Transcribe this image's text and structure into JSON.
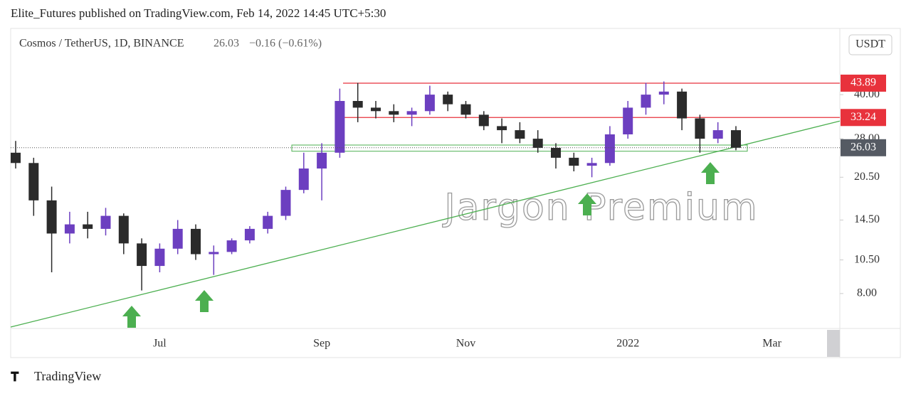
{
  "chart_data": {
    "type": "candlestick",
    "publisher": "Elite_Futures published on TradingView.com, Feb 14, 2022 14:45 UTC+5:30",
    "title": "Cosmos / TetherUS, 1D, BINANCE",
    "change_label": "−0.16 (−0.61%)",
    "currency": "USDT",
    "watermark": "Jargon Premium",
    "brand": "TradingView",
    "categories": [
      null,
      null,
      null,
      null,
      null,
      null,
      null,
      null,
      "Jul",
      null,
      null,
      null,
      null,
      null,
      null,
      null,
      null,
      "Sep",
      null,
      null,
      null,
      null,
      null,
      null,
      null,
      "Nov",
      null,
      null,
      null,
      null,
      null,
      null,
      null,
      null,
      "2022",
      null,
      null,
      null,
      null,
      null,
      null,
      null,
      "Mar"
    ],
    "open": [
      25,
      23,
      17,
      13,
      14,
      13.5,
      15,
      12,
      10,
      11.5,
      13.5,
      11,
      11.2,
      12.3,
      13.5,
      15,
      18.5,
      22,
      25,
      38,
      36,
      35,
      34,
      35,
      40,
      37,
      34,
      31,
      30,
      28,
      26,
      24,
      22.5,
      23,
      29,
      36,
      40,
      41,
      33,
      28,
      30,
      null,
      null
    ],
    "high": [
      27.5,
      24,
      19,
      15.5,
      15.5,
      16,
      15.3,
      12.5,
      12,
      14.5,
      14,
      11.8,
      12.5,
      13.8,
      15.5,
      19,
      25,
      27,
      42,
      44,
      38,
      37,
      36,
      43,
      41,
      38,
      35,
      33,
      32,
      30,
      27,
      25,
      24,
      31,
      38,
      44,
      44.5,
      42,
      34,
      32,
      31,
      null,
      null
    ],
    "low": [
      22,
      15,
      9.5,
      12,
      12.5,
      12.8,
      11,
      8.2,
      9.5,
      11,
      10.5,
      9.3,
      11,
      12,
      13,
      14.5,
      18,
      17,
      24,
      32,
      33,
      32,
      31,
      34,
      35,
      33,
      30,
      27,
      27,
      25,
      22,
      21.5,
      20.5,
      22.5,
      28,
      34,
      37,
      30,
      25,
      27,
      25.5,
      null,
      null
    ],
    "close": [
      23,
      17,
      13,
      14,
      13.5,
      15,
      12,
      10,
      11.5,
      13.5,
      11,
      11.2,
      12.3,
      13.5,
      15,
      18.5,
      22,
      25,
      38,
      36,
      35,
      34,
      35,
      40,
      37,
      34,
      31,
      30,
      28,
      26,
      24,
      22.5,
      23,
      29,
      36,
      40,
      41,
      33,
      28,
      30,
      26.03,
      null,
      null
    ],
    "up_color": "#6c3fc0",
    "down_color": "#2b2b2b",
    "ylim": [
      6.03,
      66.4
    ],
    "log_scale": true,
    "yticks": [
      {
        "value": 8,
        "label": "8.00"
      },
      {
        "value": 10.5,
        "label": "10.50"
      },
      {
        "value": 14.5,
        "label": "14.50"
      },
      {
        "value": 20.5,
        "label": "20.50"
      },
      {
        "value": 28,
        "label": "28.00"
      },
      {
        "value": 40,
        "label": "40.00"
      }
    ],
    "levels": [
      {
        "value": 43.89,
        "label": "43.89"
      },
      {
        "value": 33.24,
        "label": "33.24"
      }
    ],
    "level_color": "#e8323c",
    "support_zone": [
      25.3,
      26.6
    ],
    "trendline": [
      6.1,
      32.3
    ],
    "trend_color": "#4caf50",
    "last_color": "#555a63"
  }
}
